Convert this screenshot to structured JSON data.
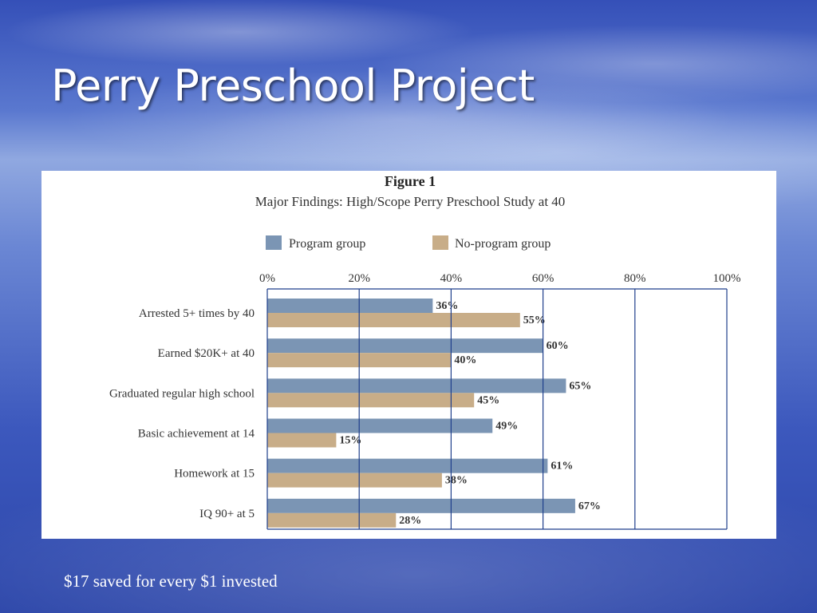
{
  "slide": {
    "title": "Perry Preschool Project",
    "footer": "$17 saved for every $1 invested"
  },
  "chart_data": {
    "type": "bar",
    "orientation": "horizontal",
    "title": "Figure 1",
    "subtitle": "Major Findings: High/Scope Perry Preschool Study at 40",
    "categories": [
      "Arrested 5+ times by 40",
      "Earned $20K+ at 40",
      "Graduated regular high school",
      "Basic achievement at 14",
      "Homework at 15",
      "IQ 90+ at 5"
    ],
    "series": [
      {
        "name": "Program group",
        "color": "#7b95b4",
        "values": [
          36,
          60,
          65,
          49,
          61,
          67
        ],
        "labels": [
          "36%",
          "60%",
          "65%",
          "49%",
          "61%",
          "67%"
        ]
      },
      {
        "name": "No-program group",
        "color": "#c8ad88",
        "values": [
          55,
          40,
          45,
          15,
          38,
          28
        ],
        "labels": [
          "55%",
          "40%",
          "45%",
          "15%",
          "38%",
          "28%"
        ]
      }
    ],
    "xlim": [
      0,
      100
    ],
    "xticks": [
      "0%",
      "20%",
      "40%",
      "60%",
      "80%",
      "100%"
    ],
    "gridline_color": "#1f3f8c",
    "grid": true,
    "legend_position": "top"
  }
}
